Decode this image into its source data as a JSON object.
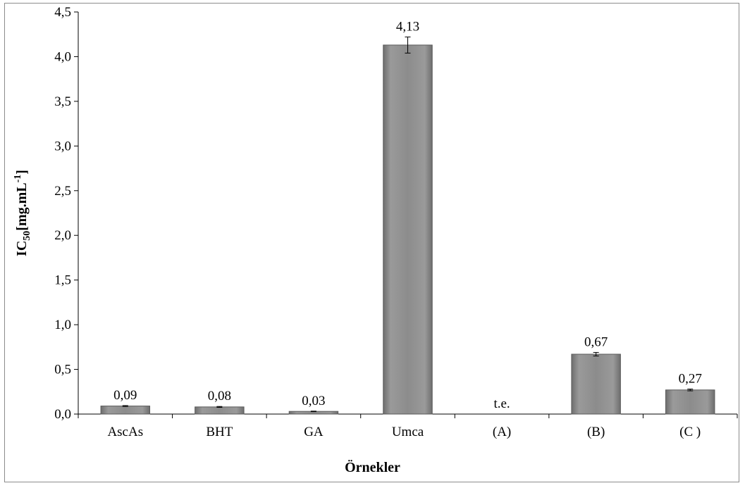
{
  "chart_data": {
    "type": "bar",
    "categories": [
      "AscAs",
      "BHT",
      "GA",
      "Umca",
      "(A)",
      "(B)",
      "(C )"
    ],
    "values": [
      0.09,
      0.08,
      0.03,
      4.13,
      null,
      0.67,
      0.27
    ],
    "error": [
      0.005,
      0.005,
      0.003,
      0.09,
      null,
      0.02,
      0.01
    ],
    "data_labels": [
      "0,09",
      "0,08",
      "0,03",
      "4,13",
      "t.e.",
      "0,67",
      "0,27"
    ],
    "xlabel": "Örnekler",
    "ylabel": {
      "main": "IC",
      "sub": "50",
      "rest": "[mg.mL",
      "sup": "-1",
      "close": "]"
    },
    "ylim": [
      0,
      4.5
    ],
    "yticks": [
      0.0,
      0.5,
      1.0,
      1.5,
      2.0,
      2.5,
      3.0,
      3.5,
      4.0,
      4.5
    ],
    "ytick_labels": [
      "0,0",
      "0,5",
      "1,0",
      "1,5",
      "2,0",
      "2,5",
      "3,0",
      "3,5",
      "4,0",
      "4,5"
    ],
    "grid": false,
    "bar_color": "#8a8a8a"
  }
}
